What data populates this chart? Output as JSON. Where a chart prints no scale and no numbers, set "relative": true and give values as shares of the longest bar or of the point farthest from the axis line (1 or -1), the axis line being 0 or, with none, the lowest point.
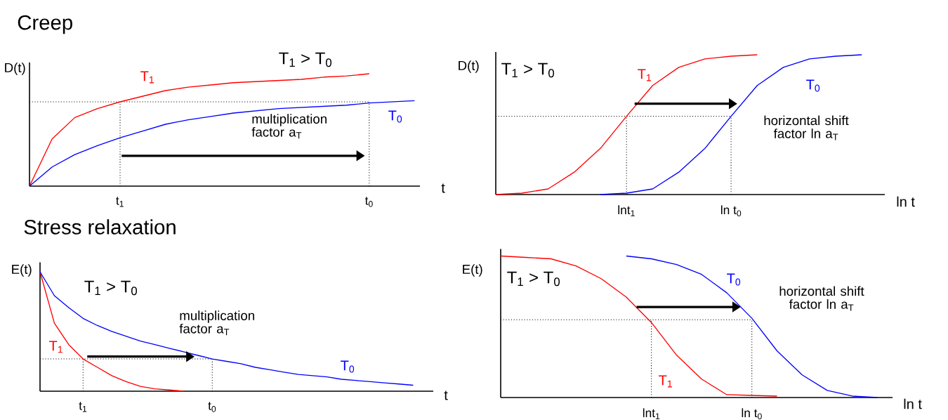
{
  "chart_data": [
    {
      "type": "line",
      "title": "Creep",
      "xlabel": "t",
      "ylabel": "D(t)",
      "relative": true,
      "categories": [
        null,
        null,
        null,
        null,
        "t$_{1}$",
        null,
        null,
        null,
        null,
        null,
        null,
        null,
        null,
        null,
        null,
        "t$_{0}$",
        null,
        null
      ],
      "annotations": [
        "T$_{1}$ > T$_{0}$",
        "multiplication factor a$_{T}$"
      ],
      "ref_lines": [
        {
          "axis": "y",
          "value": 0.75,
          "color": "#000000",
          "line_style": "dotted"
        },
        {
          "axis": "x",
          "value": "t$_{1}$",
          "color": "#000000",
          "line_style": "dotted"
        },
        {
          "axis": "x",
          "value": "t$_{0}$",
          "color": "#000000",
          "line_style": "dotted"
        }
      ],
      "series": [
        {
          "name": "T$_{1}$",
          "color": "#ff0000",
          "values": [
            0,
            0.42,
            0.61,
            0.69,
            0.75,
            0.8,
            0.85,
            0.88,
            0.9,
            0.92,
            0.93,
            0.94,
            0.95,
            0.97,
            0.98,
            1.0,
            null,
            null
          ]
        },
        {
          "name": "T$_{0}$",
          "color": "#0000ff",
          "values": [
            0,
            0.17,
            0.28,
            0.36,
            0.43,
            0.49,
            0.55,
            0.59,
            0.62,
            0.65,
            0.67,
            0.69,
            0.7,
            0.71,
            0.72,
            0.74,
            0.75,
            0.76
          ]
        }
      ]
    },
    {
      "type": "line",
      "xlabel": "ln t",
      "ylabel": "D(t)",
      "relative": true,
      "categories": [
        null,
        null,
        null,
        null,
        null,
        "lnt$_{1}$",
        null,
        null,
        null,
        "ln t$_{0}$",
        null,
        null,
        null,
        null,
        null
      ],
      "annotations": [
        "T$_{1}$ > T$_{0}$",
        "horizontal shift factor ln a$_{T}$"
      ],
      "ref_lines": [
        {
          "axis": "y",
          "value": 0.56,
          "color": "#000000",
          "line_style": "dotted"
        },
        {
          "axis": "x",
          "value": "lnt$_{1}$",
          "color": "#000000",
          "line_style": "dotted"
        },
        {
          "axis": "x",
          "value": "ln t$_{0}$",
          "color": "#000000",
          "line_style": "dotted"
        }
      ],
      "series": [
        {
          "name": "T$_{1}$",
          "color": "#ff0000",
          "values": [
            0,
            0.01,
            0.04,
            0.16,
            0.33,
            0.56,
            0.78,
            0.91,
            0.97,
            0.99,
            1.0,
            null,
            null,
            null,
            null
          ]
        },
        {
          "name": "T$_{0}$",
          "color": "#0000ff",
          "values": [
            null,
            null,
            null,
            null,
            0,
            0.01,
            0.04,
            0.16,
            0.33,
            0.56,
            0.78,
            0.91,
            0.97,
            0.99,
            1.0
          ]
        }
      ]
    },
    {
      "type": "line",
      "title": "Stress relaxation",
      "xlabel": "t",
      "ylabel": "E(t)",
      "relative": true,
      "categories": [
        null,
        null,
        null,
        "t$_{1}$",
        null,
        null,
        null,
        null,
        null,
        null,
        null,
        null,
        "t$_{0}$",
        null,
        null,
        null,
        null,
        null,
        null,
        null,
        null,
        null,
        null,
        null,
        null,
        null,
        null
      ],
      "annotations": [
        "T$_{1}$ > T$_{0}$",
        "multiplication factor a$_{T}$"
      ],
      "ref_lines": [
        {
          "axis": "y",
          "value": 0.27,
          "color": "#000000",
          "line_style": "dotted"
        },
        {
          "axis": "x",
          "value": "t$_{1}$",
          "color": "#000000",
          "line_style": "dotted"
        },
        {
          "axis": "x",
          "value": "t$_{0}$",
          "color": "#000000",
          "line_style": "dotted"
        }
      ],
      "series": [
        {
          "name": "T$_{1}$",
          "color": "#ff0000",
          "values": [
            1.0,
            0.57,
            0.39,
            0.27,
            0.2,
            0.13,
            0.08,
            0.04,
            0.02,
            0.01,
            0,
            null,
            null,
            null,
            null,
            null,
            null,
            null,
            null,
            null,
            null,
            null,
            null,
            null,
            null,
            null,
            null
          ]
        },
        {
          "name": "T$_{0}$",
          "color": "#0000ff",
          "values": [
            1.0,
            0.8,
            0.7,
            0.61,
            0.55,
            0.5,
            0.46,
            0.42,
            0.39,
            0.36,
            0.33,
            0.3,
            0.27,
            0.25,
            0.23,
            0.2,
            0.18,
            0.16,
            0.14,
            0.13,
            0.12,
            0.1,
            0.09,
            0.08,
            0.07,
            0.06,
            0.05
          ]
        }
      ]
    },
    {
      "type": "line",
      "xlabel": "ln t",
      "ylabel": "E(t)",
      "relative": true,
      "categories": [
        null,
        null,
        null,
        null,
        null,
        null,
        "lnt$_{1}$",
        null,
        null,
        null,
        "ln t$_{0}$",
        null,
        null,
        null,
        null,
        null
      ],
      "annotations": [
        "T$_{1}$ > T$_{0}$",
        "horizontal shift factor ln a$_{T}$"
      ],
      "ref_lines": [
        {
          "axis": "y",
          "value": 0.55,
          "color": "#000000",
          "line_style": "dotted"
        },
        {
          "axis": "x",
          "value": "lnt$_{1}$",
          "color": "#000000",
          "line_style": "dotted"
        },
        {
          "axis": "x",
          "value": "ln t$_{0}$",
          "color": "#000000",
          "line_style": "dotted"
        }
      ],
      "series": [
        {
          "name": "T$_{1}$",
          "color": "#ff0000",
          "values": [
            1.0,
            0.99,
            0.98,
            0.93,
            0.84,
            0.71,
            0.53,
            0.3,
            0.13,
            0.02,
            0.015,
            0.01,
            null,
            null,
            null,
            null
          ]
        },
        {
          "name": "T$_{0}$",
          "color": "#0000ff",
          "values": [
            null,
            null,
            null,
            null,
            null,
            1.0,
            0.98,
            0.94,
            0.87,
            0.74,
            0.56,
            0.33,
            0.16,
            0.05,
            0.01,
            0
          ]
        }
      ]
    }
  ]
}
